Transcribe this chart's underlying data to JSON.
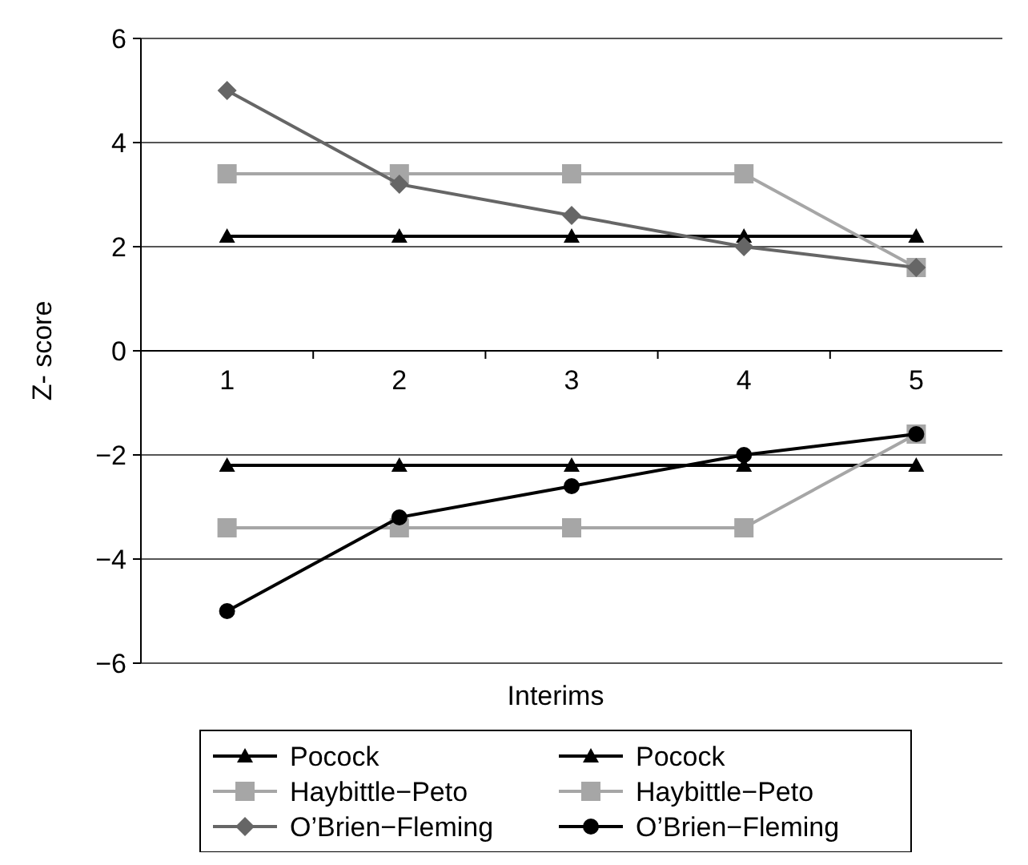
{
  "chart_data": {
    "type": "line",
    "xlabel": "Interims",
    "ylabel": "Z- score",
    "categories": [
      "1",
      "2",
      "3",
      "4",
      "5"
    ],
    "ylim": [
      -6,
      6
    ],
    "yticks": [
      {
        "value": -6,
        "label": "−6"
      },
      {
        "value": -4,
        "label": "−4"
      },
      {
        "value": -2,
        "label": "−2"
      },
      0,
      2,
      4,
      6
    ],
    "grid": "y",
    "legend": "bottom",
    "line_style": "solid",
    "series": [
      {
        "name": "Pocock",
        "color": "#000000",
        "marker": "triangle",
        "values": [
          2.2,
          2.2,
          2.2,
          2.2,
          2.2
        ]
      },
      {
        "name": "Pocock",
        "color": "#000000",
        "marker": "triangle",
        "values": [
          -2.2,
          -2.2,
          -2.2,
          -2.2,
          -2.2
        ]
      },
      {
        "name": "Haybittle−Peto",
        "color": "#a6a6a6",
        "marker": "square",
        "values": [
          3.4,
          3.4,
          3.4,
          3.4,
          1.6
        ]
      },
      {
        "name": "Haybittle−Peto",
        "color": "#a6a6a6",
        "marker": "square",
        "values": [
          -3.4,
          -3.4,
          -3.4,
          -3.4,
          -1.6
        ]
      },
      {
        "name": "O’Brien−Fleming",
        "color": "#666666",
        "marker": "diamond",
        "values": [
          5,
          3.2,
          2.6,
          2,
          1.6
        ]
      },
      {
        "name": "O’Brien−Fleming",
        "color": "#000000",
        "marker": "circle",
        "values": [
          -5,
          -3.2,
          -2.6,
          -2,
          -1.6
        ]
      }
    ]
  }
}
